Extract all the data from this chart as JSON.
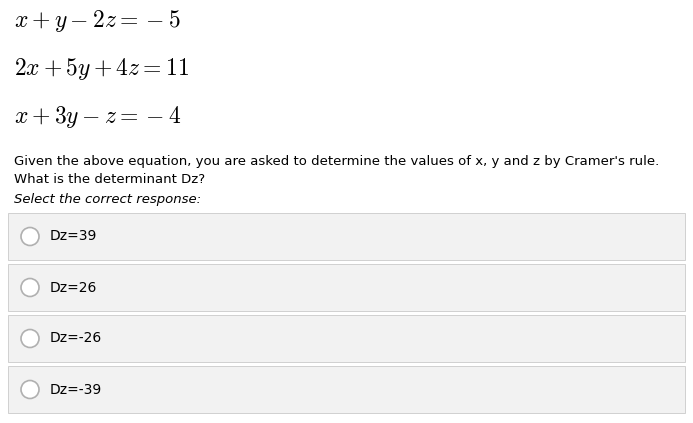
{
  "eq1": "$x + y - 2z = -5$",
  "eq2": "$2x + 5y + 4z = 11$",
  "eq3": "$x + 3y - z = -4$",
  "description": "Given the above equation, you are asked to determine the values of x, y and z by Cramer's rule.",
  "question": "What is the determinant Dz?",
  "select_label": "Select the correct response:",
  "options": [
    "Dz=39",
    "Dz=26",
    "Dz=-26",
    "Dz=-39"
  ],
  "bg_color": "#ffffff",
  "option_bg_color": "#f2f2f2",
  "option_border_color": "#d0d0d0",
  "text_color": "#000000",
  "radio_color": "#b0b0b0",
  "eq_font_size": 17,
  "desc_font_size": 9.5,
  "q_font_size": 9.5,
  "select_font_size": 9.5,
  "option_font_size": 10
}
